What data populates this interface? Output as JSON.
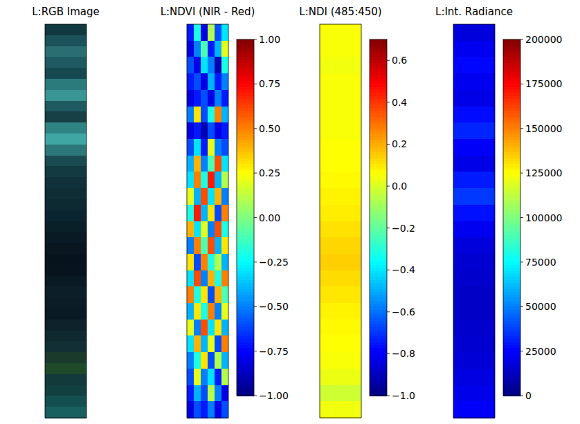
{
  "chart_data": [
    {
      "type": "image",
      "title": "L:RGB Image",
      "colors": [
        "#11393f",
        "#1c5259",
        "#2a6e72",
        "#1f5a60",
        "#164850",
        "#2b7b7d",
        "#3a9595",
        "#1e5a5f",
        "#163f46",
        "#2f8383",
        "#3fa6a4",
        "#2c7879",
        "#1b4b52",
        "#133a40",
        "#10313a",
        "#0e2d35",
        "#0d2a33",
        "#0b2530",
        "#0a2029",
        "#091a24",
        "#08161f",
        "#07131c",
        "#08141d",
        "#0a1a22",
        "#0c1f28",
        "#0b1c26",
        "#0a1a24",
        "#0d222a",
        "#10292f",
        "#123034",
        "#1a3a2c",
        "#1f4a2a",
        "#123a3a",
        "#114040",
        "#145050",
        "#186060"
      ]
    },
    {
      "type": "heatmap",
      "title": "L:NDVI (NIR - Red)",
      "cells": [
        [
          -0.7,
          -0.2,
          -0.8,
          0.1,
          -0.6,
          -0.3
        ],
        [
          -0.8,
          -0.5,
          -0.1,
          -0.7,
          -0.4,
          0.2
        ],
        [
          -0.6,
          -0.8,
          -0.3,
          -0.5,
          -0.9,
          -0.2
        ],
        [
          -0.7,
          -0.6,
          -0.8,
          -0.4,
          -0.7,
          -0.5
        ],
        [
          -0.8,
          -0.7,
          -0.6,
          -0.8,
          -0.5,
          -0.7
        ],
        [
          -0.5,
          0.3,
          -0.6,
          -0.2,
          0.5,
          -0.4
        ],
        [
          -0.8,
          -0.7,
          -0.9,
          -0.6,
          -0.8,
          -0.7
        ],
        [
          -0.6,
          -0.3,
          -0.7,
          0.2,
          -0.5,
          -0.6
        ],
        [
          -0.4,
          0.4,
          -0.5,
          -0.1,
          0.6,
          -0.3
        ],
        [
          -0.3,
          0.5,
          -0.2,
          0.7,
          -0.4,
          0.1
        ],
        [
          0.2,
          -0.4,
          0.6,
          -0.3,
          0.4,
          -0.5
        ],
        [
          -0.2,
          0.7,
          -0.4,
          0.3,
          -0.6,
          0.5
        ],
        [
          0.4,
          -0.3,
          0.2,
          -0.5,
          0.6,
          -0.2
        ],
        [
          -0.5,
          0.5,
          -0.1,
          0.6,
          -0.4,
          0.3
        ],
        [
          0.3,
          -0.6,
          0.5,
          -0.2,
          0.1,
          -0.4
        ],
        [
          -0.3,
          0.6,
          -0.5,
          0.4,
          -0.2,
          0.5
        ],
        [
          0.5,
          -0.2,
          0.3,
          -0.6,
          0.4,
          -0.1
        ],
        [
          -0.4,
          0.3,
          -0.2,
          0.5,
          -0.5,
          0.2
        ],
        [
          0.2,
          -0.5,
          0.6,
          -0.3,
          0.3,
          -0.4
        ],
        [
          -0.3,
          0.4,
          -0.4,
          0.2,
          -0.6,
          0.5
        ],
        [
          -0.5,
          -0.2,
          0.3,
          -0.6,
          0.1,
          -0.4
        ],
        [
          -0.6,
          0.2,
          -0.5,
          -0.3,
          -0.7,
          0.1
        ],
        [
          -0.7,
          -0.4,
          -0.6,
          0.1,
          -0.5,
          -0.8
        ],
        [
          -0.8,
          -0.6,
          -0.7,
          -0.5,
          -0.8,
          -0.6
        ]
      ],
      "colorbar_range": [
        -1,
        1
      ],
      "colorbar_ticks": [
        {
          "value": 1,
          "label": "1.00"
        },
        {
          "value": 0.75,
          "label": "0.75"
        },
        {
          "value": 0.5,
          "label": "0.50"
        },
        {
          "value": 0.25,
          "label": "0.25"
        },
        {
          "value": 0,
          "label": "0.00"
        },
        {
          "value": -0.25,
          "label": "−0.25"
        },
        {
          "value": -0.5,
          "label": "−0.50"
        },
        {
          "value": -0.75,
          "label": "−0.75"
        },
        {
          "value": -1,
          "label": "−1.00"
        }
      ]
    },
    {
      "type": "heatmap",
      "title": "L:NDI (485:450)",
      "cells": [
        [
          0.05
        ],
        [
          0.05
        ],
        [
          0.04
        ],
        [
          0.05
        ],
        [
          0.05
        ],
        [
          0.05
        ],
        [
          0.05
        ],
        [
          0.06
        ],
        [
          0.06
        ],
        [
          0.07
        ],
        [
          0.08
        ],
        [
          0.09
        ],
        [
          0.11
        ],
        [
          0.13
        ],
        [
          0.14
        ],
        [
          0.12
        ],
        [
          0.1
        ],
        [
          0.08
        ],
        [
          0.07
        ],
        [
          0.06
        ],
        [
          0.05
        ],
        [
          0.03
        ],
        [
          -0.02
        ],
        [
          0.04
        ]
      ],
      "colorbar_range": [
        -1,
        0.7
      ],
      "colorbar_ticks": [
        0.6,
        0.4,
        0.2,
        {
          "value": 0,
          "label": "0.0"
        },
        {
          "value": -0.2,
          "label": "−0.2"
        },
        {
          "value": -0.4,
          "label": "−0.4"
        },
        {
          "value": -0.6,
          "label": "−0.6"
        },
        {
          "value": -0.8,
          "label": "−0.8"
        },
        {
          "value": -1,
          "label": "−1.0"
        }
      ]
    },
    {
      "type": "heatmap",
      "title": "L:Int. Radiance",
      "cells": [
        [
          18000
        ],
        [
          22000
        ],
        [
          26000
        ],
        [
          22000
        ],
        [
          20000
        ],
        [
          27000
        ],
        [
          32000
        ],
        [
          24000
        ],
        [
          20000
        ],
        [
          30000
        ],
        [
          36000
        ],
        [
          28000
        ],
        [
          22000
        ],
        [
          18000
        ],
        [
          16000
        ],
        [
          15000
        ],
        [
          14000
        ],
        [
          14000
        ],
        [
          15000
        ],
        [
          16000
        ],
        [
          17000
        ],
        [
          19000
        ],
        [
          21000
        ],
        [
          24000
        ]
      ],
      "colorbar_range": [
        0,
        200000
      ],
      "colorbar_ticks": [
        200000,
        175000,
        150000,
        125000,
        100000,
        75000,
        50000,
        25000,
        0
      ]
    }
  ]
}
